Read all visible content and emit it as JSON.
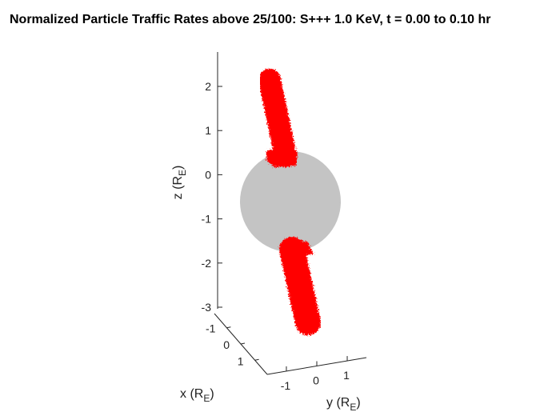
{
  "chart_data": {
    "type": "scatter",
    "projection": "3d",
    "title": "Normalized Particle Traffic Rates above 25/100: S+++ 1.0 KeV, t = 0.00 to 0.10 hr",
    "zlabel": {
      "main": "z (R",
      "sub": "E",
      "close": ")"
    },
    "xlabel": {
      "main": "x (R",
      "sub": "E",
      "close": ")"
    },
    "ylabel": {
      "main": "y (R",
      "sub": "E",
      "close": ")"
    },
    "zticks": [
      "2",
      "1",
      "0",
      "-1",
      "-2",
      "-3"
    ],
    "xticks": [
      "-1",
      "0",
      "1"
    ],
    "yticks": [
      "-1",
      "0",
      "1"
    ],
    "zlim": [
      -3,
      2.4
    ],
    "xlim": [
      -1,
      1
    ],
    "ylim": [
      -1,
      1
    ],
    "sphere": {
      "label": "Earth",
      "radius": 1,
      "color": "#c4c4c4"
    },
    "traffic_regions": [
      {
        "name": "north",
        "color": "#ff0000",
        "z_range": [
          0.6,
          2.3
        ]
      },
      {
        "name": "south",
        "color": "#ff0000",
        "z_range": [
          -3.0,
          -0.95
        ]
      }
    ],
    "grid": false
  }
}
